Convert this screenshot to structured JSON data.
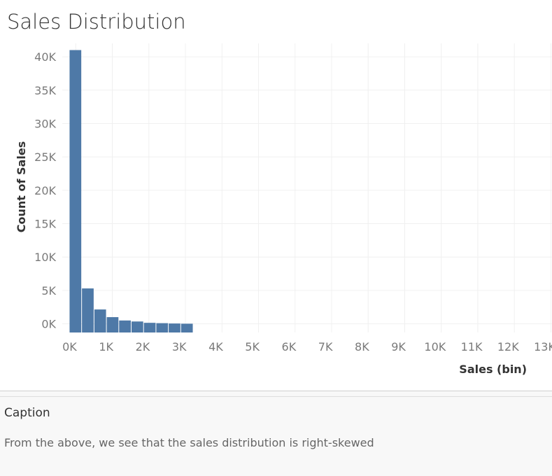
{
  "title": "Sales Distribution",
  "caption": {
    "heading": "Caption",
    "text": "From the above, we see that the sales distribution is right-skewed"
  },
  "colors": {
    "bar": "#4e79a7",
    "grid": "#f0f0f0",
    "tick_text": "#7a7a7a",
    "axis_title": "#333333"
  },
  "chart_data": {
    "type": "bar",
    "title": "Sales Distribution",
    "xlabel": "Sales (bin)",
    "ylabel": "Count of Sales",
    "bin_width": 339,
    "xlim": [
      -200,
      13200
    ],
    "ylim": [
      -1300,
      42000
    ],
    "x_ticks": [
      0,
      1000,
      2000,
      3000,
      4000,
      5000,
      6000,
      7000,
      8000,
      9000,
      10000,
      11000,
      12000,
      13000
    ],
    "x_tick_labels": [
      "0K",
      "1K",
      "2K",
      "3K",
      "4K",
      "5K",
      "6K",
      "7K",
      "8K",
      "9K",
      "10K",
      "11K",
      "12K",
      "13K"
    ],
    "y_ticks": [
      0,
      5000,
      10000,
      15000,
      20000,
      25000,
      30000,
      35000,
      40000
    ],
    "y_tick_labels": [
      "0K",
      "5K",
      "10K",
      "15K",
      "20K",
      "25K",
      "30K",
      "35K",
      "40K"
    ],
    "bins": [
      0,
      339,
      678,
      1017,
      1356,
      1695,
      2034,
      2373,
      2712,
      3051
    ],
    "values": [
      41000,
      5300,
      2150,
      1000,
      500,
      350,
      150,
      100,
      50,
      20
    ],
    "grid": true,
    "legend": "none"
  }
}
